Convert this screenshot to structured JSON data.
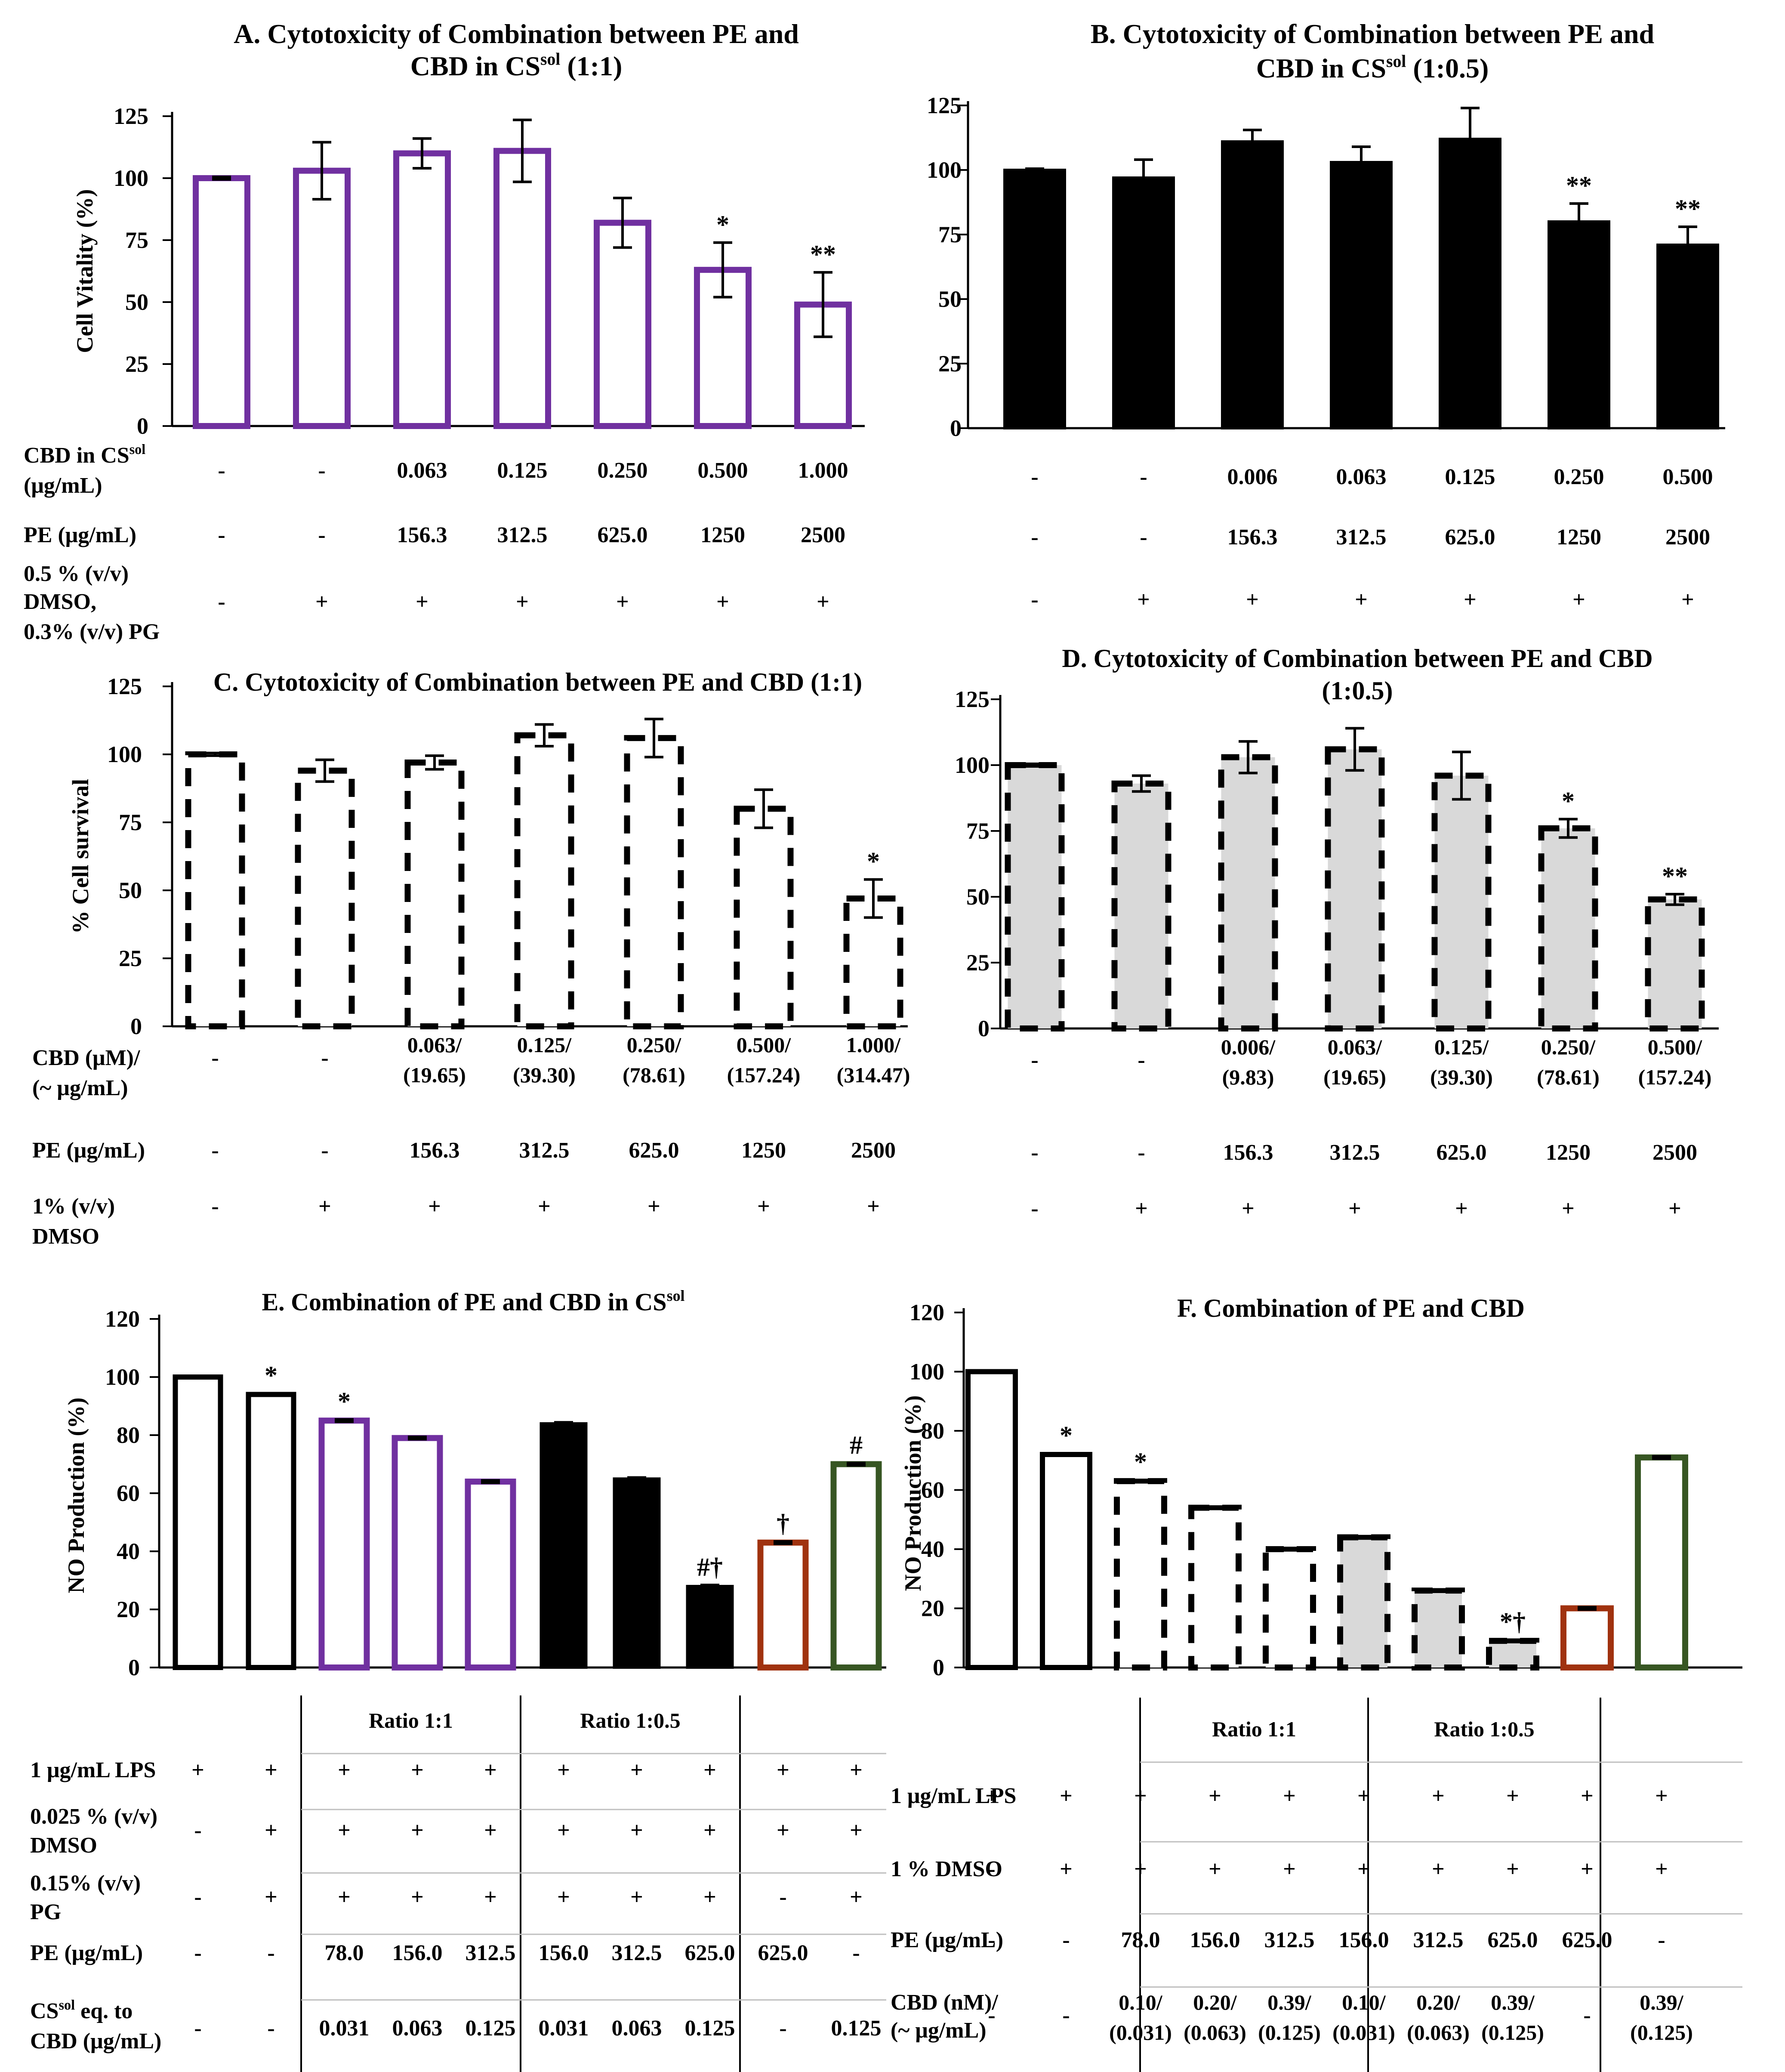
{
  "figure": {
    "chart_data": [
      {
        "id": "A",
        "type": "bar",
        "title_lines": [
          "A. Cytotoxicity of Combination between PE and",
          "CBD in CS",
          "sol",
          " (1:1)"
        ],
        "ylabel": "Cell Vitality (%)",
        "ylim": [
          0,
          125
        ],
        "yticks": [
          "0",
          "25",
          "50",
          "75",
          "100",
          "125"
        ],
        "values": [
          100,
          103,
          110,
          111,
          82,
          63,
          49
        ],
        "errors": [
          0.5,
          11.5,
          6,
          12.5,
          10,
          11,
          13
        ],
        "significance": [
          "",
          "",
          "",
          "",
          "",
          "*",
          "**"
        ],
        "bar_style": "purple-outline",
        "table": [
          {
            "label_lines": [
              "CBD in CS",
              "sol",
              "(μg/mL)"
            ],
            "values": [
              "-",
              "-",
              "0.063",
              "0.125",
              "0.250",
              "0.500",
              "1.000"
            ]
          },
          {
            "label_lines": [
              "PE (μg/mL)"
            ],
            "values": [
              "-",
              "-",
              "156.3",
              "312.5",
              "625.0",
              "1250",
              "2500"
            ]
          },
          {
            "label_lines": [
              "0.5 % (v/v)",
              "DMSO,",
              "0.3% (v/v) PG"
            ],
            "values": [
              "-",
              "+",
              "+",
              "+",
              "+",
              "+",
              "+"
            ]
          }
        ]
      },
      {
        "id": "B",
        "type": "bar",
        "title_lines": [
          "B. Cytotoxicity of Combination between PE and",
          "CBD in CS",
          "sol",
          " (1:0.5)"
        ],
        "ylabel": "",
        "ylim": [
          0,
          125
        ],
        "yticks": [
          "0",
          "25",
          "50",
          "75",
          "100",
          "125"
        ],
        "values": [
          100,
          97,
          111,
          103,
          112,
          80,
          71
        ],
        "errors": [
          0.5,
          7,
          4.5,
          6,
          12,
          7,
          7
        ],
        "significance": [
          "",
          "",
          "",
          "",
          "",
          "**",
          "**"
        ],
        "bar_style": "black-fill",
        "table": [
          {
            "label_lines": [],
            "values": [
              "-",
              "-",
              "0.006",
              "0.063",
              "0.125",
              "0.250",
              "0.500"
            ]
          },
          {
            "label_lines": [],
            "values": [
              "-",
              "-",
              "156.3",
              "312.5",
              "625.0",
              "1250",
              "2500"
            ]
          },
          {
            "label_lines": [],
            "values": [
              "-",
              "+",
              "+",
              "+",
              "+",
              "+",
              "+"
            ]
          }
        ]
      },
      {
        "id": "C",
        "type": "bar",
        "title_lines": [
          "C. Cytotoxicity of Combination between PE and CBD (1:1)"
        ],
        "ylabel": "% Cell survival",
        "ylim": [
          0,
          125
        ],
        "yticks": [
          "0",
          "25",
          "50",
          "75",
          "100",
          "125"
        ],
        "values": [
          100,
          94,
          97,
          107,
          106,
          80,
          47
        ],
        "errors": [
          0.5,
          4,
          2.5,
          4,
          7,
          7,
          7
        ],
        "significance": [
          "",
          "",
          "",
          "",
          "",
          "",
          "*"
        ],
        "bar_style": "dashed-white",
        "table": [
          {
            "label_lines": [
              "CBD (μM)/",
              "(~ μg/mL)"
            ],
            "values": [
              "-",
              "-",
              "0.063/|(19.65)",
              "0.125/|(39.30)",
              "0.250/|(78.61)",
              "0.500/|(157.24)",
              "1.000/|(314.47)"
            ]
          },
          {
            "label_lines": [
              "PE (μg/mL)"
            ],
            "values": [
              "-",
              "-",
              "156.3",
              "312.5",
              "625.0",
              "1250",
              "2500"
            ]
          },
          {
            "label_lines": [
              "1% (v/v)",
              "DMSO"
            ],
            "values": [
              "-",
              "+",
              "+",
              "+",
              "+",
              "+",
              "+"
            ]
          }
        ]
      },
      {
        "id": "D",
        "type": "bar",
        "title_lines": [
          "D. Cytotoxicity of Combination between PE and CBD",
          "(1:0.5)"
        ],
        "ylabel": "",
        "ylim": [
          0,
          125
        ],
        "yticks": [
          "0",
          "25",
          "50",
          "75",
          "100",
          "125"
        ],
        "values": [
          100,
          93,
          103,
          106,
          96,
          76,
          49
        ],
        "errors": [
          0.5,
          3,
          6,
          8,
          9,
          3.5,
          2
        ],
        "significance": [
          "",
          "",
          "",
          "",
          "",
          "*",
          "**"
        ],
        "bar_style": "dashed-gray",
        "table": [
          {
            "label_lines": [],
            "values": [
              "-",
              "-",
              "0.006/|(9.83)",
              "0.063/|(19.65)",
              "0.125/|(39.30)",
              "0.250/|(78.61)",
              "0.500/|(157.24)"
            ]
          },
          {
            "label_lines": [],
            "values": [
              "-",
              "-",
              "156.3",
              "312.5",
              "625.0",
              "1250",
              "2500"
            ]
          },
          {
            "label_lines": [],
            "values": [
              "-",
              "+",
              "+",
              "+",
              "+",
              "+",
              "+"
            ]
          }
        ]
      },
      {
        "id": "E",
        "type": "bar",
        "title_lines": [
          "E. Combination of PE and CBD in CS",
          "sol"
        ],
        "ylabel": "NO Production (%)",
        "ylim": [
          0,
          120
        ],
        "yticks": [
          "0",
          "20",
          "40",
          "60",
          "80",
          "100",
          "120"
        ],
        "values": [
          100,
          94,
          85,
          79,
          64,
          84,
          65,
          28,
          43,
          70
        ],
        "errors": [
          0.4,
          0.4,
          0.4,
          0.4,
          0.4,
          0.4,
          0.4,
          0.4,
          0.4,
          0.4
        ],
        "significance": [
          "",
          "*",
          "*",
          "",
          "",
          "",
          "",
          "#†",
          "†",
          "#"
        ],
        "bar_styles": [
          "white",
          "white",
          "purple",
          "purple",
          "purple",
          "black",
          "black",
          "black",
          "brown",
          "green"
        ],
        "group_labels": [
          "Ratio 1:1",
          "Ratio 1:0.5"
        ],
        "table": [
          {
            "label_lines": [
              "1 μg/mL LPS"
            ],
            "values": [
              "+",
              "+",
              "+",
              "+",
              "+",
              "+",
              "+",
              "+",
              "+",
              "+"
            ]
          },
          {
            "label_lines": [
              "0.025 % (v/v)",
              "DMSO"
            ],
            "values": [
              "-",
              "+",
              "+",
              "+",
              "+",
              "+",
              "+",
              "+",
              "+",
              "+"
            ]
          },
          {
            "label_lines": [
              "0.15% (v/v)",
              "PG"
            ],
            "values": [
              "-",
              "+",
              "+",
              "+",
              "+",
              "+",
              "+",
              "+",
              "-",
              "+"
            ]
          },
          {
            "label_lines": [
              "PE (μg/mL)"
            ],
            "values": [
              "-",
              "-",
              "78.0",
              "156.0",
              "312.5",
              "156.0",
              "312.5",
              "625.0",
              "625.0",
              "-"
            ]
          },
          {
            "label_lines": [
              "CS",
              "sol",
              " eq. to",
              "CBD (μg/mL)"
            ],
            "values": [
              "-",
              "-",
              "0.031",
              "0.063",
              "0.125",
              "0.031",
              "0.063",
              "0.125",
              "-",
              "0.125"
            ]
          }
        ]
      },
      {
        "id": "F",
        "type": "bar",
        "title_lines": [
          "F. Combination of PE and CBD"
        ],
        "ylabel": "NO Production (%)",
        "ylim": [
          0,
          120
        ],
        "yticks": [
          "0",
          "20",
          "40",
          "60",
          "80",
          "100",
          "120"
        ],
        "values": [
          100,
          72,
          63,
          54,
          40,
          44,
          26,
          9,
          20,
          71
        ],
        "errors": [
          0.4,
          0.4,
          0.4,
          0.4,
          0.4,
          0.4,
          0.4,
          0.4,
          0.4,
          0.4
        ],
        "significance": [
          "",
          "*",
          "*",
          "",
          "",
          "",
          "",
          "*†",
          "",
          ""
        ],
        "bar_styles": [
          "white",
          "white",
          "dashed-white",
          "dashed-white",
          "dashed-white",
          "dashed-gray",
          "dashed-gray",
          "dashed-gray",
          "brown",
          "green"
        ],
        "group_labels": [
          "Ratio 1:1",
          "Ratio 1:0.5"
        ],
        "table": [
          {
            "label_lines": [
              "1 μg/mL LPS"
            ],
            "values": [
              "+",
              "+",
              "+",
              "+",
              "+",
              "+",
              "+",
              "+",
              "+",
              "+"
            ]
          },
          {
            "label_lines": [
              "1 % DMSO"
            ],
            "values": [
              "-",
              "+",
              "+",
              "+",
              "+",
              "+",
              "+",
              "+",
              "+",
              "+"
            ]
          },
          {
            "label_lines": [
              "PE (μg/mL)"
            ],
            "values": [
              "-",
              "-",
              "78.0",
              "156.0",
              "312.5",
              "156.0",
              "312.5",
              "625.0",
              "625.0",
              "-"
            ]
          },
          {
            "label_lines": [
              "CBD (nM)/",
              "(~ μg/mL)"
            ],
            "values": [
              "-",
              "-",
              "0.10/|(0.031)",
              "0.20/|(0.063)",
              "0.39/|(0.125)",
              "0.10/|(0.031)",
              "0.20/|(0.063)",
              "0.39/|(0.125)",
              "-",
              "0.39/|(0.125)"
            ]
          }
        ]
      }
    ],
    "colors": {
      "purple": "#7030a0",
      "black": "#000000",
      "brown": "#a0320f",
      "green": "#375623",
      "gray": "#d9d9d9",
      "axis": "#000000"
    }
  }
}
